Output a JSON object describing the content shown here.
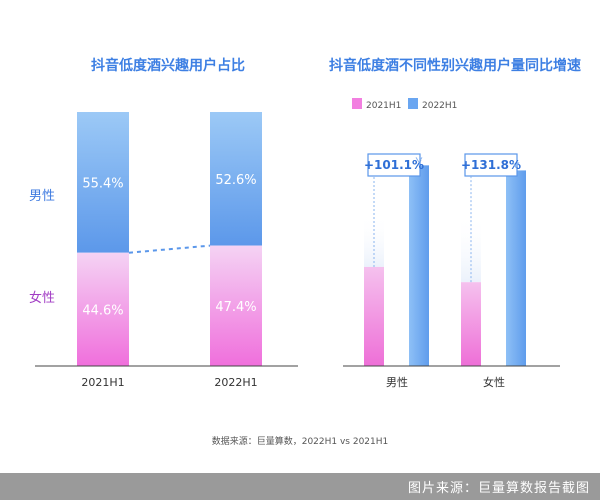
{
  "chart_data": [
    {
      "type": "bar",
      "stacked": true,
      "title": "抖音低度酒兴趣用户占比",
      "categories": [
        "2021H1",
        "2022H1"
      ],
      "series": [
        {
          "name": "男性",
          "values": [
            55.4,
            52.6
          ],
          "labels": [
            "55.4%",
            "52.6%"
          ],
          "color": "#6aa6f1"
        },
        {
          "name": "女性",
          "values": [
            44.6,
            47.4
          ],
          "labels": [
            "44.6%",
            "47.4%"
          ],
          "color": "#f27fe0"
        }
      ],
      "ylim": [
        0,
        100
      ],
      "grid": false,
      "legend": "left"
    },
    {
      "type": "bar",
      "title": "抖音低度酒不同性别兴趣用户量同比增速",
      "categories": [
        "男性",
        "女性"
      ],
      "series": [
        {
          "name": "2021H1",
          "values": [
            0.39,
            0.33
          ],
          "color": "#f27fe0"
        },
        {
          "name": "2022H1",
          "values": [
            0.79,
            0.77
          ],
          "color": "#6aa6f1"
        }
      ],
      "annotations": [
        "+101.1%",
        "+131.8%"
      ],
      "legend": "top-left",
      "grid": false
    }
  ],
  "source": "数据来源：巨量算数，2022H1 vs 2021H1",
  "watermark": "图片来源：巨量算数报告截图",
  "colors": {
    "title": "#3d7fe3",
    "male_label": "#3f7be0",
    "female_label": "#a23dc4",
    "axis": "#444444",
    "connector": "#5b97ea"
  }
}
